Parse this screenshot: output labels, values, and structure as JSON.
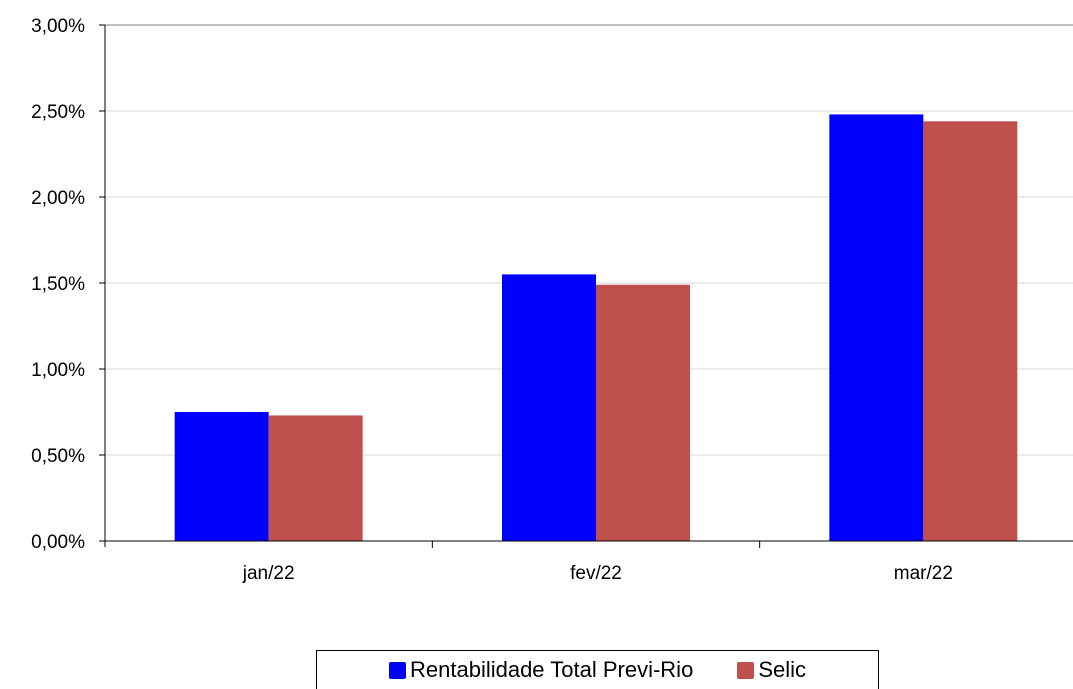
{
  "chart_data": {
    "type": "bar",
    "categories": [
      "jan/22",
      "fev/22",
      "mar/22"
    ],
    "series": [
      {
        "name": "Rentabilidade Total Previ-Rio",
        "values": [
          0.75,
          1.55,
          2.48
        ],
        "color": "#0000FF"
      },
      {
        "name": "Selic",
        "values": [
          0.73,
          1.49,
          2.44
        ],
        "color": "#C0504D"
      }
    ],
    "ylim": [
      0,
      3.0
    ],
    "yticks": [
      "0,00%",
      "0,50%",
      "1,00%",
      "1,50%",
      "2,00%",
      "2,50%",
      "3,00%"
    ],
    "ytick_values": [
      0,
      0.5,
      1.0,
      1.5,
      2.0,
      2.5,
      3.0
    ],
    "grid": true,
    "legend_position": "bottom",
    "title": "",
    "xlabel": "",
    "ylabel": ""
  }
}
